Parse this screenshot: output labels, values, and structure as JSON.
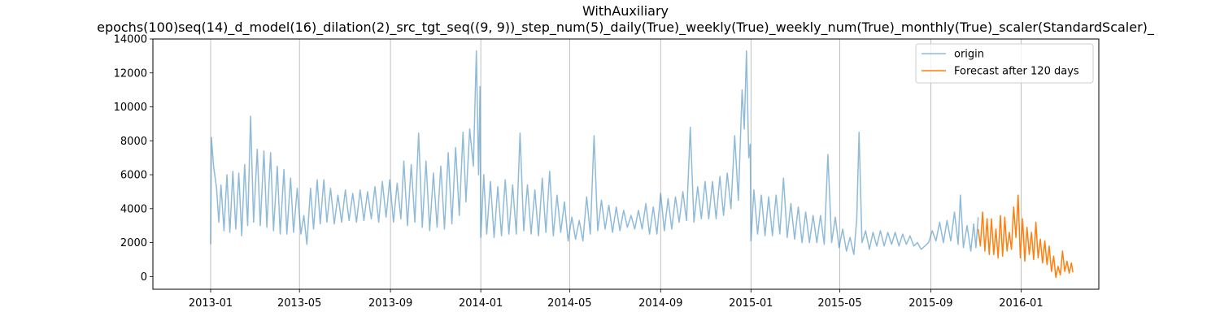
{
  "chart_data": {
    "type": "line",
    "title": "WithAuxiliary",
    "subtitle": "epochs(100)seq(14)_d_model(16)_dilation(2)_src_tgt_seq((9, 9))_step_num(5)_daily(True)_weekly(True)_weekly_num(True)_monthly(True)_scaler(StandardScaler)_",
    "xlabel": "",
    "ylabel": "",
    "x_range": [
      "2012-10-15",
      "2016-04-15"
    ],
    "ylim": [
      -750,
      14000
    ],
    "x_ticks": [
      "2013-01",
      "2013-05",
      "2013-09",
      "2014-01",
      "2014-05",
      "2014-09",
      "2015-01",
      "2015-05",
      "2015-09",
      "2016-01"
    ],
    "y_ticks": [
      0,
      2000,
      4000,
      6000,
      8000,
      10000,
      12000,
      14000
    ],
    "grid": "vertical",
    "legend_position": "upper right",
    "series": [
      {
        "name": "origin",
        "color": "#1f77b4",
        "alpha": 0.5,
        "points": [
          [
            "2013-01-01",
            1900
          ],
          [
            "2013-01-02",
            8200
          ],
          [
            "2013-01-05",
            6500
          ],
          [
            "2013-01-09",
            5200
          ],
          [
            "2013-01-12",
            3200
          ],
          [
            "2013-01-15",
            5400
          ],
          [
            "2013-01-19",
            2700
          ],
          [
            "2013-01-23",
            6000
          ],
          [
            "2013-01-27",
            2600
          ],
          [
            "2013-01-31",
            6200
          ],
          [
            "2013-02-04",
            2800
          ],
          [
            "2013-02-08",
            6100
          ],
          [
            "2013-02-12",
            2400
          ],
          [
            "2013-02-16",
            6600
          ],
          [
            "2013-02-20",
            3000
          ],
          [
            "2013-02-24",
            9450
          ],
          [
            "2013-02-28",
            3200
          ],
          [
            "2013-03-05",
            7500
          ],
          [
            "2013-03-09",
            3000
          ],
          [
            "2013-03-14",
            7400
          ],
          [
            "2013-03-18",
            2900
          ],
          [
            "2013-03-23",
            7300
          ],
          [
            "2013-03-27",
            2700
          ],
          [
            "2013-04-01",
            6500
          ],
          [
            "2013-04-05",
            2500
          ],
          [
            "2013-04-10",
            6300
          ],
          [
            "2013-04-14",
            2500
          ],
          [
            "2013-04-19",
            5800
          ],
          [
            "2013-04-23",
            2600
          ],
          [
            "2013-04-28",
            5200
          ],
          [
            "2013-05-03",
            2500
          ],
          [
            "2013-05-07",
            3600
          ],
          [
            "2013-05-11",
            1900
          ],
          [
            "2013-05-16",
            5200
          ],
          [
            "2013-05-20",
            2800
          ],
          [
            "2013-05-25",
            5700
          ],
          [
            "2013-05-29",
            3100
          ],
          [
            "2013-06-03",
            5700
          ],
          [
            "2013-06-07",
            3200
          ],
          [
            "2013-06-12",
            5200
          ],
          [
            "2013-06-17",
            3100
          ],
          [
            "2013-06-22",
            4800
          ],
          [
            "2013-06-27",
            3200
          ],
          [
            "2013-07-02",
            5100
          ],
          [
            "2013-07-07",
            3300
          ],
          [
            "2013-07-12",
            4900
          ],
          [
            "2013-07-17",
            3200
          ],
          [
            "2013-07-22",
            5100
          ],
          [
            "2013-07-27",
            3300
          ],
          [
            "2013-08-01",
            5000
          ],
          [
            "2013-08-06",
            3400
          ],
          [
            "2013-08-11",
            5300
          ],
          [
            "2013-08-16",
            3200
          ],
          [
            "2013-08-21",
            5600
          ],
          [
            "2013-08-26",
            3500
          ],
          [
            "2013-08-31",
            5700
          ],
          [
            "2013-09-05",
            3200
          ],
          [
            "2013-09-10",
            5500
          ],
          [
            "2013-09-15",
            3400
          ],
          [
            "2013-09-19",
            6800
          ],
          [
            "2013-09-24",
            3000
          ],
          [
            "2013-09-29",
            6600
          ],
          [
            "2013-10-04",
            3200
          ],
          [
            "2013-10-09",
            8450
          ],
          [
            "2013-10-14",
            2900
          ],
          [
            "2013-10-19",
            6800
          ],
          [
            "2013-10-24",
            2700
          ],
          [
            "2013-10-29",
            6100
          ],
          [
            "2013-11-03",
            2900
          ],
          [
            "2013-11-08",
            6500
          ],
          [
            "2013-11-13",
            2800
          ],
          [
            "2013-11-18",
            7300
          ],
          [
            "2013-11-23",
            3100
          ],
          [
            "2013-11-28",
            7600
          ],
          [
            "2013-12-03",
            3600
          ],
          [
            "2013-12-08",
            8500
          ],
          [
            "2013-12-12",
            4400
          ],
          [
            "2013-12-17",
            8700
          ],
          [
            "2013-12-22",
            6500
          ],
          [
            "2013-12-26",
            13300
          ],
          [
            "2013-12-29",
            6000
          ],
          [
            "2013-12-31",
            11200
          ],
          [
            "2014-01-01",
            2300
          ],
          [
            "2014-01-05",
            6000
          ],
          [
            "2014-01-09",
            2500
          ],
          [
            "2014-01-14",
            5600
          ],
          [
            "2014-01-19",
            2300
          ],
          [
            "2014-01-24",
            5300
          ],
          [
            "2014-01-29",
            2400
          ],
          [
            "2014-02-03",
            5700
          ],
          [
            "2014-02-08",
            2500
          ],
          [
            "2014-02-13",
            5400
          ],
          [
            "2014-02-18",
            2500
          ],
          [
            "2014-02-23",
            8450
          ],
          [
            "2014-02-28",
            2700
          ],
          [
            "2014-03-05",
            5400
          ],
          [
            "2014-03-10",
            2500
          ],
          [
            "2014-03-15",
            5100
          ],
          [
            "2014-03-20",
            2400
          ],
          [
            "2014-03-25",
            5800
          ],
          [
            "2014-03-30",
            2600
          ],
          [
            "2014-04-04",
            6200
          ],
          [
            "2014-04-09",
            2400
          ],
          [
            "2014-04-14",
            4800
          ],
          [
            "2014-04-19",
            2600
          ],
          [
            "2014-04-24",
            4400
          ],
          [
            "2014-04-29",
            2100
          ],
          [
            "2014-05-04",
            3500
          ],
          [
            "2014-05-09",
            2200
          ],
          [
            "2014-05-14",
            3300
          ],
          [
            "2014-05-19",
            2100
          ],
          [
            "2014-05-24",
            4700
          ],
          [
            "2014-05-29",
            2500
          ],
          [
            "2014-06-03",
            8300
          ],
          [
            "2014-06-08",
            2700
          ],
          [
            "2014-06-13",
            4500
          ],
          [
            "2014-06-18",
            2800
          ],
          [
            "2014-06-23",
            4200
          ],
          [
            "2014-06-28",
            2600
          ],
          [
            "2014-07-03",
            4100
          ],
          [
            "2014-07-08",
            2700
          ],
          [
            "2014-07-13",
            3900
          ],
          [
            "2014-07-18",
            2900
          ],
          [
            "2014-07-23",
            3600
          ],
          [
            "2014-07-28",
            2800
          ],
          [
            "2014-08-02",
            3900
          ],
          [
            "2014-08-07",
            2800
          ],
          [
            "2014-08-12",
            4300
          ],
          [
            "2014-08-17",
            2500
          ],
          [
            "2014-08-22",
            4100
          ],
          [
            "2014-08-27",
            2500
          ],
          [
            "2014-09-01",
            4900
          ],
          [
            "2014-09-06",
            2700
          ],
          [
            "2014-09-11",
            4600
          ],
          [
            "2014-09-16",
            2800
          ],
          [
            "2014-09-21",
            4700
          ],
          [
            "2014-09-26",
            3200
          ],
          [
            "2014-10-01",
            5000
          ],
          [
            "2014-10-06",
            3300
          ],
          [
            "2014-10-11",
            8800
          ],
          [
            "2014-10-16",
            3200
          ],
          [
            "2014-10-21",
            5300
          ],
          [
            "2014-10-26",
            3400
          ],
          [
            "2014-10-31",
            5600
          ],
          [
            "2014-11-05",
            3400
          ],
          [
            "2014-11-10",
            5600
          ],
          [
            "2014-11-15",
            3400
          ],
          [
            "2014-11-20",
            5900
          ],
          [
            "2014-11-25",
            3600
          ],
          [
            "2014-11-30",
            6100
          ],
          [
            "2014-12-05",
            4000
          ],
          [
            "2014-12-10",
            8300
          ],
          [
            "2014-12-15",
            4500
          ],
          [
            "2014-12-20",
            11000
          ],
          [
            "2014-12-23",
            8700
          ],
          [
            "2014-12-26",
            13300
          ],
          [
            "2014-12-29",
            7000
          ],
          [
            "2014-12-31",
            7800
          ],
          [
            "2015-01-01",
            2100
          ],
          [
            "2015-01-05",
            5100
          ],
          [
            "2015-01-10",
            2500
          ],
          [
            "2015-01-15",
            4800
          ],
          [
            "2015-01-20",
            2400
          ],
          [
            "2015-01-25",
            4700
          ],
          [
            "2015-01-30",
            2400
          ],
          [
            "2015-02-04",
            4800
          ],
          [
            "2015-02-09",
            2500
          ],
          [
            "2015-02-14",
            5800
          ],
          [
            "2015-02-19",
            2300
          ],
          [
            "2015-02-24",
            4300
          ],
          [
            "2015-03-01",
            2200
          ],
          [
            "2015-03-06",
            4100
          ],
          [
            "2015-03-11",
            2000
          ],
          [
            "2015-03-16",
            3800
          ],
          [
            "2015-03-21",
            2000
          ],
          [
            "2015-03-26",
            3600
          ],
          [
            "2015-03-31",
            2000
          ],
          [
            "2015-04-05",
            3600
          ],
          [
            "2015-04-10",
            1900
          ],
          [
            "2015-04-15",
            7200
          ],
          [
            "2015-04-20",
            2000
          ],
          [
            "2015-04-25",
            3500
          ],
          [
            "2015-04-30",
            1700
          ],
          [
            "2015-05-05",
            2800
          ],
          [
            "2015-05-10",
            1500
          ],
          [
            "2015-05-15",
            2300
          ],
          [
            "2015-05-20",
            1300
          ],
          [
            "2015-05-24",
            3400
          ],
          [
            "2015-05-27",
            8500
          ],
          [
            "2015-05-31",
            2000
          ],
          [
            "2015-06-05",
            2700
          ],
          [
            "2015-06-10",
            1600
          ],
          [
            "2015-06-15",
            2600
          ],
          [
            "2015-06-20",
            1800
          ],
          [
            "2015-06-25",
            2700
          ],
          [
            "2015-06-30",
            1800
          ],
          [
            "2015-07-05",
            2600
          ],
          [
            "2015-07-10",
            1900
          ],
          [
            "2015-07-15",
            2600
          ],
          [
            "2015-07-20",
            1800
          ],
          [
            "2015-07-25",
            2500
          ],
          [
            "2015-07-30",
            1900
          ],
          [
            "2015-08-04",
            2400
          ],
          [
            "2015-08-09",
            1800
          ],
          [
            "2015-08-14",
            2000
          ],
          [
            "2015-08-19",
            1600
          ],
          [
            "2015-08-24",
            1800
          ],
          [
            "2015-08-29",
            2000
          ],
          [
            "2015-09-03",
            2700
          ],
          [
            "2015-09-08",
            2100
          ],
          [
            "2015-09-13",
            3200
          ],
          [
            "2015-09-18",
            2000
          ],
          [
            "2015-09-23",
            3300
          ],
          [
            "2015-09-28",
            2100
          ],
          [
            "2015-10-03",
            3800
          ],
          [
            "2015-10-08",
            1900
          ],
          [
            "2015-10-11",
            4800
          ],
          [
            "2015-10-15",
            1700
          ],
          [
            "2015-10-20",
            3000
          ],
          [
            "2015-10-25",
            1500
          ],
          [
            "2015-10-29",
            3100
          ],
          [
            "2015-11-01",
            1700
          ],
          [
            "2015-11-04",
            3500
          ]
        ]
      },
      {
        "name": "Forecast after 120 days",
        "color": "#ff7f0e",
        "alpha": 1,
        "points": [
          [
            "2015-11-04",
            2800
          ],
          [
            "2015-11-07",
            1800
          ],
          [
            "2015-11-10",
            3800
          ],
          [
            "2015-11-13",
            1500
          ],
          [
            "2015-11-16",
            3400
          ],
          [
            "2015-11-19",
            1300
          ],
          [
            "2015-11-22",
            3400
          ],
          [
            "2015-11-25",
            1300
          ],
          [
            "2015-11-28",
            2800
          ],
          [
            "2015-12-01",
            1100
          ],
          [
            "2015-12-04",
            3600
          ],
          [
            "2015-12-07",
            1200
          ],
          [
            "2015-12-10",
            3500
          ],
          [
            "2015-12-13",
            1500
          ],
          [
            "2015-12-16",
            2600
          ],
          [
            "2015-12-19",
            1600
          ],
          [
            "2015-12-22",
            4100
          ],
          [
            "2015-12-25",
            2300
          ],
          [
            "2015-12-28",
            4800
          ],
          [
            "2015-12-31",
            1100
          ],
          [
            "2016-01-03",
            3400
          ],
          [
            "2016-01-06",
            900
          ],
          [
            "2016-01-09",
            2900
          ],
          [
            "2016-01-12",
            1300
          ],
          [
            "2016-01-15",
            2600
          ],
          [
            "2016-01-18",
            1000
          ],
          [
            "2016-01-21",
            3200
          ],
          [
            "2016-01-24",
            1100
          ],
          [
            "2016-01-27",
            2200
          ],
          [
            "2016-01-30",
            800
          ],
          [
            "2016-02-02",
            2100
          ],
          [
            "2016-02-05",
            700
          ],
          [
            "2016-02-08",
            1800
          ],
          [
            "2016-02-11",
            300
          ],
          [
            "2016-02-14",
            1200
          ],
          [
            "2016-02-17",
            -50
          ],
          [
            "2016-02-20",
            600
          ],
          [
            "2016-02-23",
            100
          ],
          [
            "2016-02-26",
            1500
          ],
          [
            "2016-02-29",
            300
          ],
          [
            "2016-03-03",
            900
          ],
          [
            "2016-03-06",
            200
          ],
          [
            "2016-03-09",
            800
          ],
          [
            "2016-03-11",
            250
          ]
        ]
      }
    ]
  }
}
